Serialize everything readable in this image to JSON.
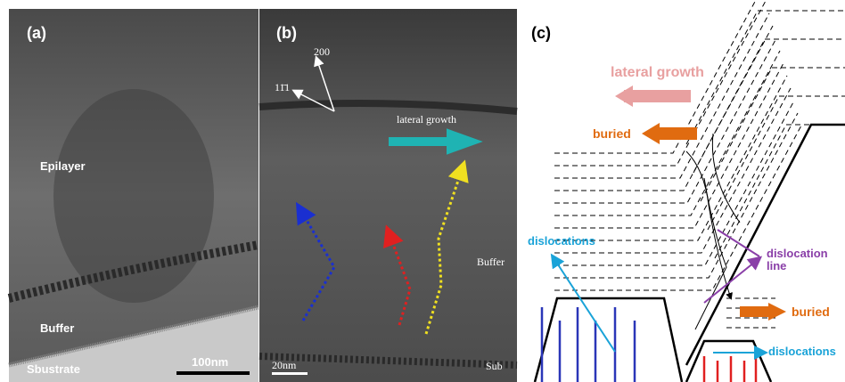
{
  "panels": [
    {
      "label": "(a)",
      "annotations": [
        "Epilayer",
        "Buffer",
        "Sbustrate"
      ],
      "scale_bar": "100nm"
    },
    {
      "label": "(b)",
      "axes": [
        "200",
        "11̄1"
      ],
      "annotations": [
        "lateral growth",
        "Buffer",
        "Sub"
      ],
      "scale_bar": "20nm"
    },
    {
      "label": "(c)",
      "annotations": [
        "lateral growth",
        "buried",
        "buried",
        "dislocations",
        "dislocations",
        "dislocation line"
      ]
    }
  ]
}
